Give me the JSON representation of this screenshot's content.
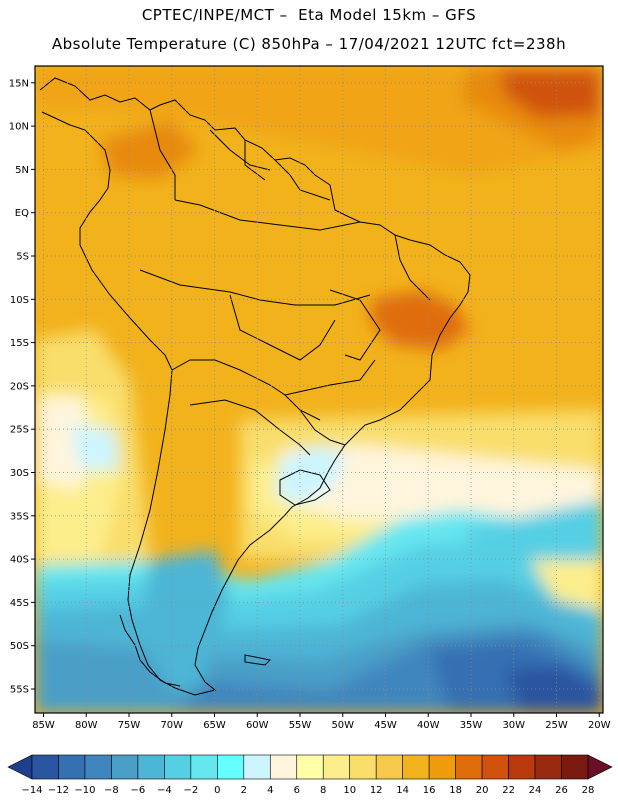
{
  "header": {
    "line1": "CPTEC/INPE/MCT –  Eta Model 15km – GFS",
    "line2": "Absolute Temperature (C) 850hPa – 17/04/2021 12UTC fct=238h"
  },
  "map": {
    "region": "South America",
    "lat_labels": [
      "15N",
      "10N",
      "5N",
      "EQ",
      "5S",
      "10S",
      "15S",
      "20S",
      "25S",
      "30S",
      "35S",
      "40S",
      "45S",
      "50S",
      "55S"
    ],
    "lon_labels": [
      "85W",
      "80W",
      "75W",
      "70W",
      "65W",
      "60W",
      "55W",
      "50W",
      "45W",
      "40W",
      "35W",
      "30W",
      "25W",
      "20W"
    ],
    "gridlines": "dotted"
  },
  "colorbar": {
    "labels": [
      "-14",
      "-12",
      "-10",
      "-8",
      "-6",
      "-4",
      "-2",
      "0",
      "2",
      "4",
      "6",
      "8",
      "10",
      "12",
      "14",
      "16",
      "18",
      "20",
      "22",
      "24",
      "26",
      "28"
    ],
    "colors": [
      "#1f3f8f",
      "#2a55a0",
      "#3470b2",
      "#3f86be",
      "#4a9fc8",
      "#4db5d6",
      "#55cfe4",
      "#66e6ef",
      "#66ffff",
      "#ccf5ff",
      "#fff5dc",
      "#ffffa8",
      "#fdee8c",
      "#f9de6c",
      "#f6c94c",
      "#f2b21c",
      "#f09b0c",
      "#e06d0c",
      "#d0520c",
      "#b83a0c",
      "#982a10",
      "#7a1a10",
      "#6a0f28"
    ]
  }
}
